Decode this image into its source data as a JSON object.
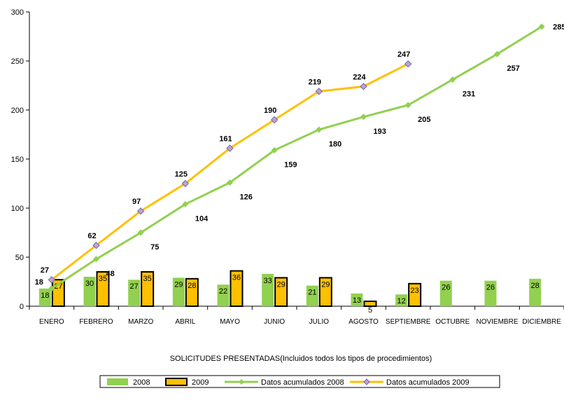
{
  "chart_data": {
    "type": "bar",
    "categories": [
      "ENERO",
      "FEBRERO",
      "MARZO",
      "ABRIL",
      "MAYO",
      "JUNIO",
      "JULIO",
      "AGOSTO",
      "SEPTIEMBRE",
      "OCTUBRE",
      "NOVIEMBRE",
      "DICIEMBRE"
    ],
    "series": [
      {
        "name": "2008",
        "kind": "bar",
        "color": "#92d050",
        "values": [
          18,
          30,
          27,
          29,
          22,
          33,
          21,
          13,
          12,
          26,
          26,
          28
        ]
      },
      {
        "name": "2009",
        "kind": "bar",
        "color": "#ffc000",
        "values": [
          27,
          35,
          35,
          28,
          36,
          29,
          29,
          5,
          23,
          null,
          null,
          null
        ]
      },
      {
        "name": "Datos acumulados 2008",
        "kind": "line",
        "color": "#92d050",
        "values": [
          18,
          48,
          75,
          104,
          126,
          159,
          180,
          193,
          205,
          231,
          257,
          285
        ]
      },
      {
        "name": "Datos acumulados 2009",
        "kind": "line",
        "color": "#ffc000",
        "values": [
          27,
          62,
          97,
          125,
          161,
          190,
          219,
          224,
          247,
          null,
          null,
          null
        ]
      }
    ],
    "title": "",
    "xlabel": "SOLICITUDES PRESENTADAS(Incluidos  todos los tipos de procedimientos)",
    "ylabel": "",
    "ylim": [
      0,
      300
    ],
    "yticks": [
      0,
      50,
      100,
      150,
      200,
      250,
      300
    ],
    "grid": false,
    "legend": "bottom"
  }
}
